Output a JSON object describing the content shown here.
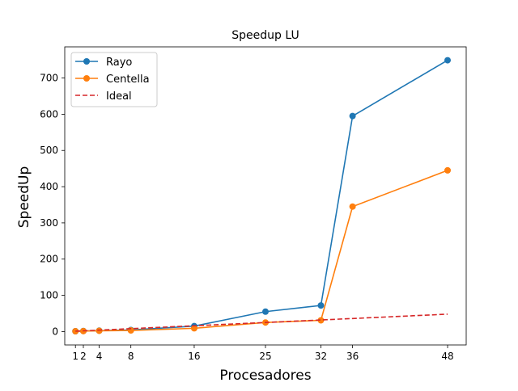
{
  "chart_data": {
    "type": "line",
    "title": "Speedup LU",
    "xlabel": "Procesadores",
    "ylabel": "SpeedUp",
    "x": [
      1,
      2,
      4,
      8,
      16,
      25,
      32,
      36,
      48
    ],
    "xticks": [
      "1",
      "2",
      "4",
      "8",
      "16",
      "25",
      "32",
      "36",
      "48"
    ],
    "yticks": [
      "0",
      "100",
      "200",
      "300",
      "400",
      "500",
      "600",
      "700"
    ],
    "ytick_values": [
      0,
      100,
      200,
      300,
      400,
      500,
      600,
      700
    ],
    "xlim": [
      -0.35,
      50.35
    ],
    "ylim": [
      -37,
      786
    ],
    "grid": false,
    "legend_position": "upper-left",
    "series": [
      {
        "name": "Rayo",
        "color": "#1f77b4",
        "line_style": "solid",
        "marker": "circle",
        "values": [
          0.9,
          1.6,
          2.5,
          4.3,
          15,
          55,
          72,
          595,
          749
        ]
      },
      {
        "name": "Centella",
        "color": "#ff7f0e",
        "line_style": "solid",
        "marker": "circle",
        "values": [
          0.8,
          1.3,
          2.1,
          3.1,
          9,
          25,
          31,
          345,
          445
        ]
      },
      {
        "name": "Ideal",
        "color": "#d62728",
        "line_style": "dashed",
        "marker": "none",
        "values": [
          1,
          2,
          4,
          8,
          16,
          25,
          32,
          36,
          48
        ]
      }
    ]
  }
}
